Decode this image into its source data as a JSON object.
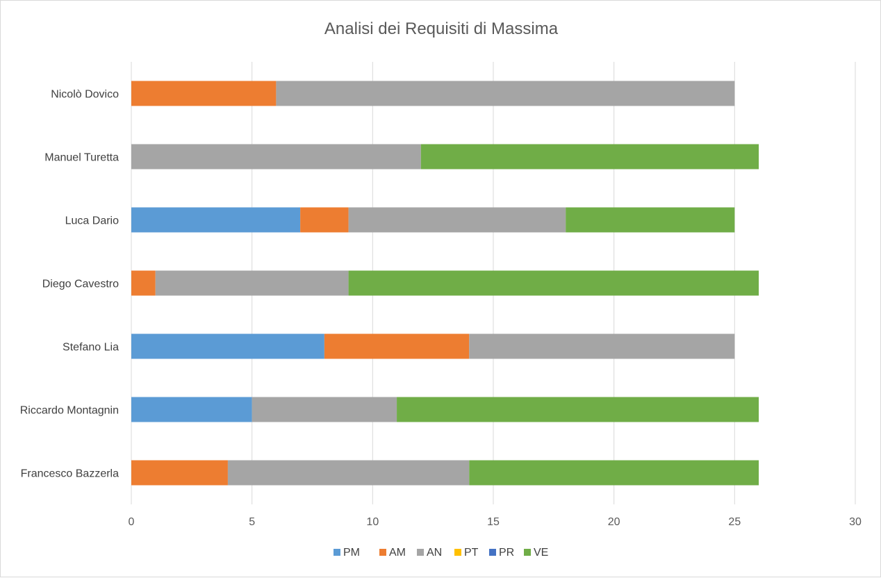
{
  "chart_data": {
    "type": "bar",
    "orientation": "horizontal",
    "stacked": true,
    "title": "Analisi dei Requisiti di Massima",
    "categories": [
      "Francesco Bazzerla",
      "Riccardo Montagnin",
      "Stefano Lia",
      "Diego Cavestro",
      "Luca Dario",
      "Manuel Turetta",
      "Nicolò Dovico"
    ],
    "series": [
      {
        "name": "PM",
        "color": "#5b9bd5",
        "values": [
          0,
          5,
          8,
          0,
          7,
          0,
          0
        ]
      },
      {
        "name": "AM",
        "color": "#ed7d31",
        "values": [
          4,
          0,
          6,
          1,
          2,
          0,
          6
        ]
      },
      {
        "name": "AN",
        "color": "#a5a5a5",
        "values": [
          10,
          6,
          11,
          8,
          9,
          12,
          19
        ]
      },
      {
        "name": "PT",
        "color": "#ffc000",
        "values": [
          0,
          0,
          0,
          0,
          0,
          0,
          0
        ]
      },
      {
        "name": "PR",
        "color": "#4472c4",
        "values": [
          0,
          0,
          0,
          0,
          0,
          0,
          0
        ]
      },
      {
        "name": "VE",
        "color": "#70ad47",
        "values": [
          12,
          15,
          0,
          17,
          7,
          14,
          0
        ]
      }
    ],
    "xlim": [
      0,
      30
    ],
    "xticks": [
      "0",
      "5",
      "10",
      "15",
      "20",
      "25",
      "30"
    ],
    "grid": true,
    "legend": "bottom",
    "colors": {
      "grid": "#d9d9d9",
      "text": "#595959"
    }
  }
}
